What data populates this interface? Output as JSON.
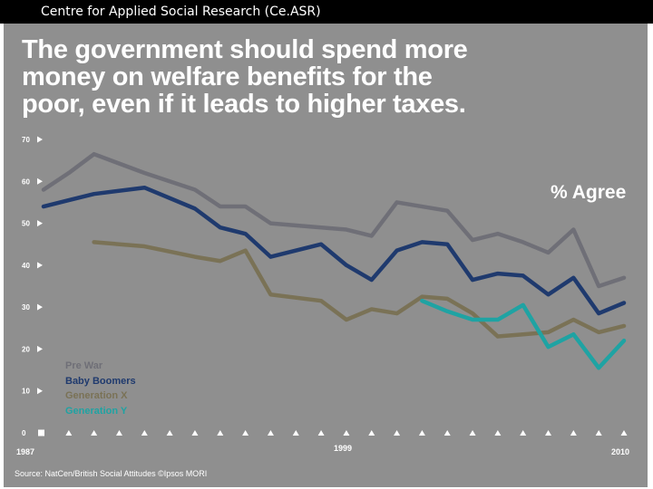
{
  "header": {
    "title": "Centre for Applied Social Research (Ce.ASR)"
  },
  "slide": {
    "background": "#8f8f8f",
    "headline_lines": [
      "The government should spend more",
      "money on welfare benefits for the",
      "poor, even if it leads to higher taxes."
    ],
    "source": "Source: NatCen/British Social Attitudes ©Ipsos MORI"
  },
  "chart_data": {
    "type": "line",
    "title": "The government should spend more money on welfare benefits for the poor, even if it leads to higher taxes.",
    "annotation": "% Agree",
    "ylabel": "% Agree",
    "xlabel": "",
    "ylim": [
      0,
      70
    ],
    "yticks": [
      0,
      10,
      20,
      30,
      40,
      50,
      60,
      70
    ],
    "x_range": [
      1987,
      2010
    ],
    "x_tick_labels": [
      "1987",
      "1999",
      "2010"
    ],
    "x": [
      1987,
      1988,
      1989,
      1990,
      1991,
      1992,
      1993,
      1994,
      1995,
      1996,
      1997,
      1998,
      1999,
      2000,
      2001,
      2002,
      2003,
      2004,
      2005,
      2006,
      2007,
      2008,
      2009,
      2010
    ],
    "series": [
      {
        "name": "Pre War",
        "color": "#6f6f77",
        "values": [
          58,
          62,
          66.5,
          null,
          62,
          null,
          58,
          54,
          54,
          50,
          null,
          49,
          48.5,
          47,
          55,
          54,
          53,
          46,
          47.5,
          45.5,
          43,
          48.5,
          35,
          37
        ]
      },
      {
        "name": "Baby Boomers",
        "color": "#1f3a6e",
        "values": [
          54,
          55.5,
          57,
          null,
          58.5,
          null,
          53.5,
          49,
          47.5,
          42,
          null,
          45,
          40,
          36.5,
          43.5,
          45.5,
          45,
          36.5,
          38,
          37.5,
          33,
          37,
          28.5,
          31
        ]
      },
      {
        "name": "Generation X",
        "color": "#7a7256",
        "values": [
          null,
          null,
          45.5,
          null,
          44.5,
          null,
          42,
          41,
          43.5,
          33,
          null,
          31.5,
          27,
          29.5,
          28.5,
          32.5,
          32,
          28.5,
          23,
          23.5,
          24,
          27,
          24,
          25.5
        ]
      },
      {
        "name": "Generation Y",
        "color": "#1fa3a3",
        "values": [
          null,
          null,
          null,
          null,
          null,
          null,
          null,
          null,
          null,
          null,
          null,
          null,
          null,
          null,
          null,
          31.5,
          29,
          27,
          27,
          30.5,
          20.5,
          23.5,
          15.5,
          22
        ]
      }
    ],
    "legend": [
      "Pre War",
      "Baby Boomers",
      "Generation X",
      "Generation Y"
    ]
  }
}
